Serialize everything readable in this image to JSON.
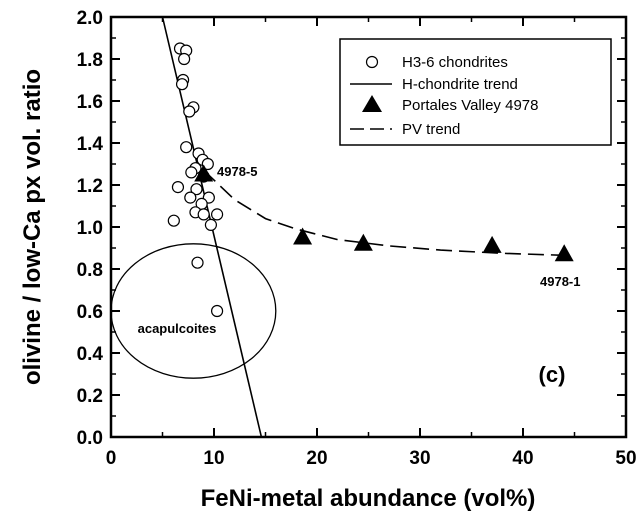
{
  "chart_data": {
    "type": "scatter",
    "xlabel": "FeNi-metal abundance (vol%)",
    "ylabel": "olivine / low-Ca px vol. ratio",
    "xlim": [
      0,
      50
    ],
    "ylim": [
      0.0,
      2.0
    ],
    "x_ticks": [
      "0",
      "10",
      "20",
      "30",
      "40",
      "50"
    ],
    "y_ticks": [
      "0.0",
      "0.2",
      "0.4",
      "0.6",
      "0.8",
      "1.0",
      "1.2",
      "1.4",
      "1.6",
      "1.8",
      "2.0"
    ],
    "legend_position": "top-right",
    "series": [
      {
        "name": "H3-6 chondrites",
        "marker": "open-circle",
        "points": [
          [
            6.7,
            1.85
          ],
          [
            7.3,
            1.84
          ],
          [
            7.1,
            1.8
          ],
          [
            7.0,
            1.7
          ],
          [
            6.9,
            1.68
          ],
          [
            8.0,
            1.57
          ],
          [
            7.6,
            1.55
          ],
          [
            7.3,
            1.38
          ],
          [
            8.5,
            1.35
          ],
          [
            8.9,
            1.32
          ],
          [
            9.4,
            1.3
          ],
          [
            8.2,
            1.28
          ],
          [
            7.8,
            1.26
          ],
          [
            9.0,
            1.24
          ],
          [
            6.5,
            1.19
          ],
          [
            8.3,
            1.18
          ],
          [
            7.7,
            1.14
          ],
          [
            9.5,
            1.14
          ],
          [
            8.8,
            1.11
          ],
          [
            8.2,
            1.07
          ],
          [
            9.0,
            1.06
          ],
          [
            10.3,
            1.06
          ],
          [
            6.1,
            1.03
          ],
          [
            9.7,
            1.01
          ],
          [
            8.4,
            0.83
          ],
          [
            10.3,
            0.6
          ]
        ]
      },
      {
        "name": "H-chondrite trend",
        "style": "solid",
        "points": [
          [
            5.0,
            2.0
          ],
          [
            14.6,
            0.0
          ]
        ]
      },
      {
        "name": "Portales Valley 4978",
        "marker": "filled-triangle",
        "points": [
          [
            9.0,
            1.25
          ],
          [
            18.6,
            0.95
          ],
          [
            24.5,
            0.92
          ],
          [
            37.0,
            0.91
          ],
          [
            44.0,
            0.87
          ]
        ]
      },
      {
        "name": "PV trend",
        "style": "dashed",
        "points": [
          [
            9.0,
            1.27
          ],
          [
            12,
            1.13
          ],
          [
            15,
            1.04
          ],
          [
            18,
            0.99
          ],
          [
            22,
            0.94
          ],
          [
            27,
            0.91
          ],
          [
            32,
            0.89
          ],
          [
            38,
            0.875
          ],
          [
            44,
            0.865
          ]
        ]
      }
    ],
    "annotations": {
      "sample_top": "4978-5",
      "sample_bottom": "4978-1",
      "region": "acapulcoites",
      "panel": "(c)"
    },
    "region_ellipse": {
      "cx": 8.0,
      "cy": 0.6,
      "rx": 8.0,
      "ry": 0.32
    }
  }
}
